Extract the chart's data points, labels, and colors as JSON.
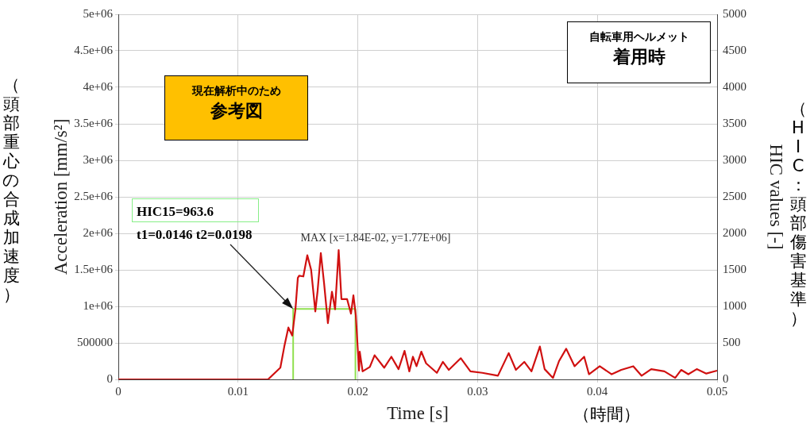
{
  "chart_data": {
    "type": "line",
    "xlabel": "Time [s]",
    "ylabel": "Acceleration [mm/s²]",
    "y2label": "HIC values [-]",
    "xlim": [
      0,
      0.05
    ],
    "xticks": [
      0,
      0.01,
      0.02,
      0.03,
      0.04,
      0.05
    ],
    "ylim": [
      0,
      5000000
    ],
    "yticks": [
      0,
      500000,
      {
        "value": 1000000,
        "label": "1e+06"
      },
      {
        "value": 1500000,
        "label": "1.5e+06"
      },
      {
        "value": 2000000,
        "label": "2e+06"
      },
      {
        "value": 2500000,
        "label": "2.5e+06"
      },
      {
        "value": 3000000,
        "label": "3e+06"
      },
      {
        "value": 3500000,
        "label": "3.5e+06"
      },
      {
        "value": 4000000,
        "label": "4e+06"
      },
      {
        "value": 4500000,
        "label": "4.5e+06"
      },
      {
        "value": 5000000,
        "label": "5e+06"
      }
    ],
    "y2lim": [
      0,
      5000
    ],
    "y2ticks": [
      0,
      500,
      1000,
      1500,
      2000,
      2500,
      3000,
      3500,
      4000,
      4500,
      5000
    ],
    "grid": true,
    "marker": "none",
    "series": [
      {
        "color": "#d01010",
        "axis": "y",
        "x": [
          0,
          0.0125,
          0.01353,
          0.01386,
          0.0142,
          0.01452,
          0.01479,
          0.01499,
          0.0151,
          0.01545,
          0.01578,
          0.0161,
          0.01645,
          0.01664,
          0.01691,
          0.01718,
          0.0175,
          0.01784,
          0.0181,
          0.0184,
          0.01863,
          0.0191,
          0.01943,
          0.01963,
          0.01983,
          0.0201,
          0.02016,
          0.0204,
          0.021,
          0.0214,
          0.0222,
          0.0228,
          0.0234,
          0.0239,
          0.0243,
          0.0246,
          0.0249,
          0.0253,
          0.0257,
          0.0266,
          0.0271,
          0.0276,
          0.0286,
          0.0294,
          0.0304,
          0.0317,
          0.0326,
          0.0332,
          0.0339,
          0.0345,
          0.0352,
          0.0356,
          0.0363,
          0.0368,
          0.0374,
          0.0381,
          0.0389,
          0.0393,
          0.0402,
          0.0412,
          0.042,
          0.043,
          0.0437,
          0.0445,
          0.0456,
          0.0465,
          0.047,
          0.0476,
          0.0483,
          0.0491,
          0.05
        ],
        "values": [
          0,
          0,
          160000,
          450000,
          710000,
          600000,
          960000,
          1390000,
          1420000,
          1410000,
          1700000,
          1500000,
          930000,
          1210000,
          1730000,
          1320000,
          770000,
          1200000,
          960000,
          1770000,
          1100000,
          1100000,
          900000,
          1150000,
          880000,
          120000,
          380000,
          110000,
          170000,
          330000,
          160000,
          310000,
          140000,
          390000,
          110000,
          310000,
          180000,
          380000,
          220000,
          90000,
          240000,
          130000,
          290000,
          110000,
          90000,
          50000,
          360000,
          130000,
          240000,
          110000,
          450000,
          140000,
          20000,
          250000,
          420000,
          180000,
          310000,
          70000,
          180000,
          70000,
          130000,
          180000,
          50000,
          140000,
          110000,
          20000,
          130000,
          70000,
          140000,
          80000,
          120000
        ]
      },
      {
        "type": "line",
        "color": "#90e050",
        "axis": "y2",
        "x": [
          0.0146,
          0.0146,
          0.0198,
          0.0198
        ],
        "values": [
          0,
          963.6,
          963.6,
          0
        ]
      }
    ],
    "annotations": [
      "自転車用ヘルメット",
      "着用時",
      "現在解析中のため",
      "参考図",
      "HIC15=963.6",
      "t1=0.0146 t2=0.0198",
      {
        "text": "MAX [x=1.84E-02, y=1.77E+06]",
        "x": 0.0184,
        "y": 1770000
      },
      "（頭部重心の合成加速度）",
      "（HIC：頭部傷害基準）",
      "（時間）"
    ]
  }
}
